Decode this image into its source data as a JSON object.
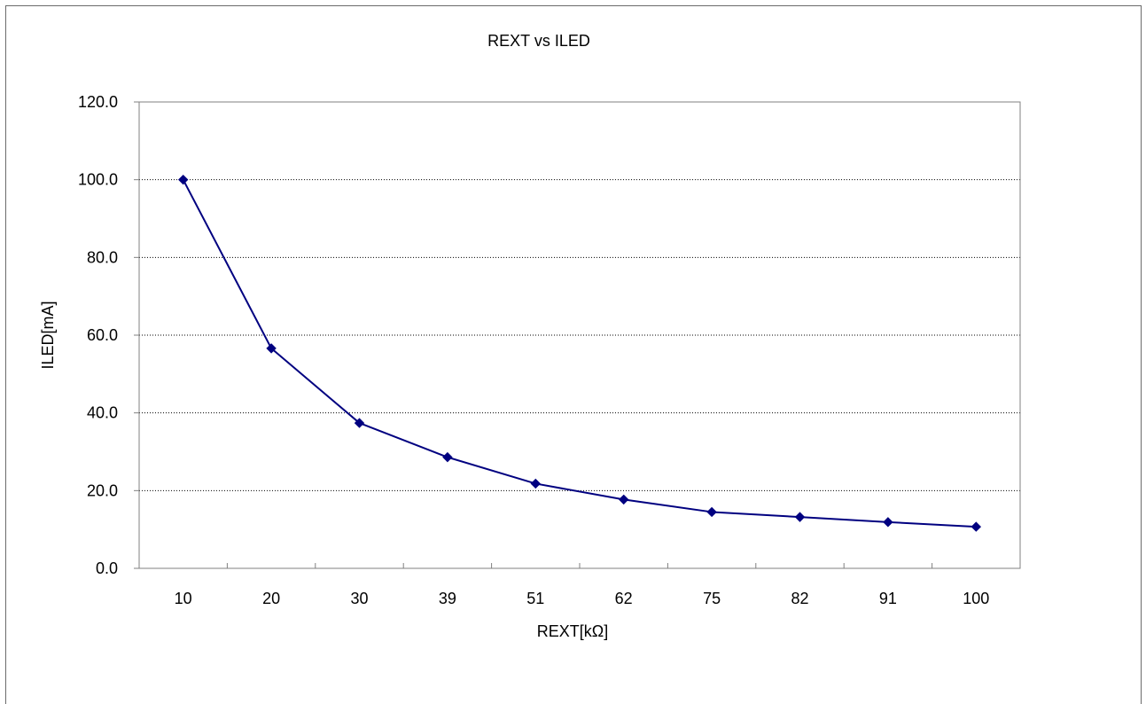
{
  "chart_data": {
    "type": "line",
    "title": "REXT vs ILED",
    "xlabel": "REXT[kΩ]",
    "ylabel": "ILED[mA]",
    "categories": [
      "10",
      "20",
      "30",
      "39",
      "51",
      "62",
      "75",
      "82",
      "91",
      "100"
    ],
    "y_ticks": [
      "0.0",
      "20.0",
      "40.0",
      "60.0",
      "80.0",
      "100.0",
      "120.0"
    ],
    "ylim": [
      0,
      120
    ],
    "grid": "horizontal-dotted",
    "legend": "none",
    "series": [
      {
        "values": [
          100.0,
          56.6,
          37.4,
          28.6,
          21.8,
          17.7,
          14.5,
          13.2,
          11.9,
          10.7
        ],
        "color": "#000080",
        "marker": "diamond"
      }
    ]
  }
}
